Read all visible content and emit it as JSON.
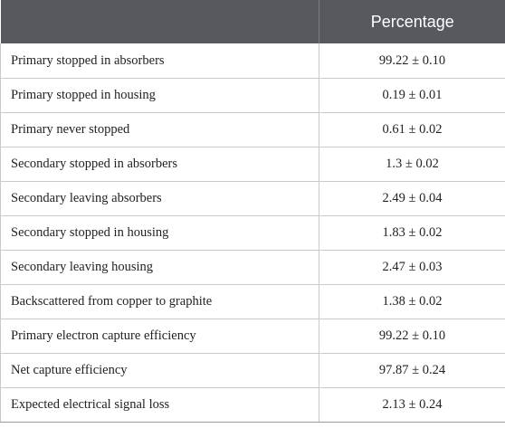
{
  "table": {
    "header": {
      "col1": "",
      "col2": "Percentage"
    },
    "rows": [
      {
        "label": "Primary stopped in absorbers",
        "value": "99.22 ± 0.10"
      },
      {
        "label": "Primary stopped in housing",
        "value": "0.19 ± 0.01"
      },
      {
        "label": "Primary never stopped",
        "value": "0.61 ± 0.02"
      },
      {
        "label": "Secondary stopped in absorbers",
        "value": "1.3 ± 0.02"
      },
      {
        "label": "Secondary leaving absorbers",
        "value": "2.49 ± 0.04"
      },
      {
        "label": "Secondary stopped in housing",
        "value": "1.83 ± 0.02"
      },
      {
        "label": "Secondary leaving housing",
        "value": "2.47 ± 0.03"
      },
      {
        "label": "Backscattered from copper to graphite",
        "value": "1.38 ± 0.02"
      },
      {
        "label": "Primary electron capture efficiency",
        "value": "99.22 ± 0.10"
      },
      {
        "label": "Net capture efficiency",
        "value": "97.87 ± 0.24"
      },
      {
        "label": "Expected electrical signal loss",
        "value": "2.13 ± 0.24"
      }
    ]
  }
}
